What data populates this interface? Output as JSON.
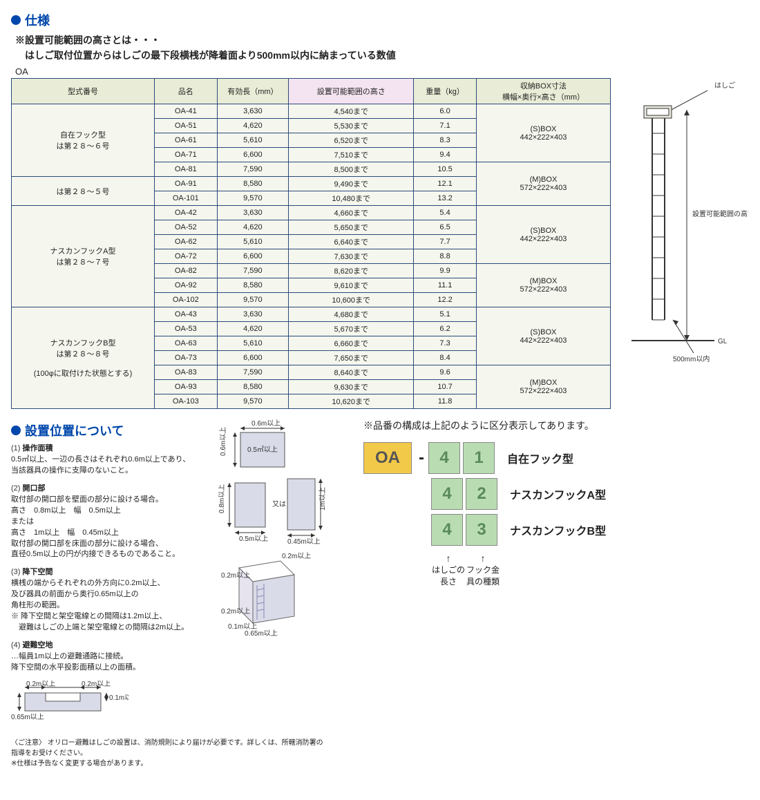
{
  "section1_title": "仕様",
  "note_line1": "※設置可能範囲の高さとは・・・",
  "note_line2": "　はしご取付位置からはしごの最下段横桟が降着面より500mm以内に納まっている数値",
  "oa_label": "OA",
  "table": {
    "headers": [
      "型式番号",
      "品名",
      "有効長（mm）",
      "設置可能範囲の高さ",
      "重量（kg）",
      "収納BOX寸法\n横幅×奥行×高さ（mm）"
    ],
    "groups": [
      {
        "type_labels": [
          "自在フック型\nは第２８～６号",
          "は第２８～５号"
        ],
        "type_rowspans": [
          5,
          2
        ],
        "rows": [
          [
            "OA-41",
            "3,630",
            "4,540まで",
            "6.0"
          ],
          [
            "OA-51",
            "4,620",
            "5,530まで",
            "7.1"
          ],
          [
            "OA-61",
            "5,610",
            "6,520まで",
            "8.3"
          ],
          [
            "OA-71",
            "6,600",
            "7,510まで",
            "9.4"
          ],
          [
            "OA-81",
            "7,590",
            "8,500まで",
            "10.5"
          ],
          [
            "OA-91",
            "8,580",
            "9,490まで",
            "12.1"
          ],
          [
            "OA-101",
            "9,570",
            "10,480まで",
            "13.2"
          ]
        ],
        "boxes": [
          "(S)BOX\n442×222×403",
          "(M)BOX\n572×222×403"
        ],
        "box_rowspans": [
          4,
          3
        ]
      },
      {
        "type_labels": [
          "ナスカンフックA型\nは第２８～７号"
        ],
        "type_rowspans": [
          7
        ],
        "rows": [
          [
            "OA-42",
            "3,630",
            "4,660まで",
            "5.4"
          ],
          [
            "OA-52",
            "4,620",
            "5,650まで",
            "6.5"
          ],
          [
            "OA-62",
            "5,610",
            "6,640まで",
            "7.7"
          ],
          [
            "OA-72",
            "6,600",
            "7,630まで",
            "8.8"
          ],
          [
            "OA-82",
            "7,590",
            "8,620まで",
            "9.9"
          ],
          [
            "OA-92",
            "8,580",
            "9,610まで",
            "11.1"
          ],
          [
            "OA-102",
            "9,570",
            "10,600まで",
            "12.2"
          ]
        ],
        "boxes": [
          "(S)BOX\n442×222×403",
          "(M)BOX\n572×222×403"
        ],
        "box_rowspans": [
          4,
          3
        ]
      },
      {
        "type_labels": [
          "ナスカンフックB型\nは第２８～８号\n\n(100φに取付けた状態とする)"
        ],
        "type_rowspans": [
          7
        ],
        "rows": [
          [
            "OA-43",
            "3,630",
            "4,680まで",
            "5.1"
          ],
          [
            "OA-53",
            "4,620",
            "5,670まで",
            "6.2"
          ],
          [
            "OA-63",
            "5,610",
            "6,660まで",
            "7.3"
          ],
          [
            "OA-73",
            "6,600",
            "7,650まで",
            "8.4"
          ],
          [
            "OA-83",
            "7,590",
            "8,640まで",
            "9.6"
          ],
          [
            "OA-93",
            "8,580",
            "9,630まで",
            "10.7"
          ],
          [
            "OA-103",
            "9,570",
            "10,620まで",
            "11.8"
          ]
        ],
        "boxes": [
          "(S)BOX\n442×222×403",
          "(M)BOX\n572×222×403"
        ],
        "box_rowspans": [
          4,
          3
        ]
      }
    ]
  },
  "side_diagram": {
    "label_ladder": "はしご",
    "label_range": "設置可能範囲の高さ",
    "label_gl": "GL",
    "label_500": "500mm以内"
  },
  "section2_title": "設置位置について",
  "pos_items": [
    {
      "num": "(1)",
      "ttl": "操作面積",
      "body": "0.5㎡以上、一辺の長さはそれぞれ0.6m以上であり、\n当該器具の操作に支障のないこと。"
    },
    {
      "num": "(2)",
      "ttl": "開口部",
      "body": "取付部の開口部を壁面の部分に設ける場合。\n高さ　0.8m以上　幅　0.5m以上\nまたは\n高さ　1m以上　幅　0.45m以上\n取付部の開口部を床面の部分に設ける場合、\n直径0.5m以上の円が内接できるものであること。"
    },
    {
      "num": "(3)",
      "ttl": "降下空間",
      "body": "横桟の端からそれぞれの外方向に0.2m以上、\n及び器具の前面から奥行0.65m以上の\n角柱形の範囲。\n※ 降下空間と架空電線との間隔は1.2m以上、\n　避難はしごの上端と架空電線との間隔は2m以上。"
    },
    {
      "num": "(4)",
      "ttl": "避難空地",
      "body": "…幅員1m以上の避難通路に接続。\n降下空間の水平投影面積以上の面積。"
    }
  ],
  "mini_labels": {
    "d06": "0.6m以上",
    "d05sq": "0.5㎡以上",
    "d08": "0.8m以上",
    "d05": "0.5m以上",
    "d1": "1m以上",
    "d045": "0.45m以上",
    "mata": "又は",
    "d02": "0.2m以上",
    "d065": "0.65m以上",
    "d01": "0.1m以上"
  },
  "code_note": "※品番の構成は上記のように区分表示してあります。",
  "code_rows": [
    {
      "oa": "OA",
      "dash": "-",
      "d1": "4",
      "d2": "1",
      "label": "自在フック型"
    },
    {
      "d1": "4",
      "d2": "2",
      "label": "ナスカンフックA型"
    },
    {
      "d1": "4",
      "d2": "3",
      "label": "ナスカンフックB型"
    }
  ],
  "code_bottom_labels": {
    "left": "はしごの長さ",
    "right": "フック金具の種類"
  },
  "footer1_label": "〈ご注意〉",
  "footer1": "オリロー避難はしごの設置は、消防規則により届けが必要です。詳しくは、所轄消防署の\n指導をお受けください。",
  "footer2": "※仕様は予告なく変更する場合があります。"
}
